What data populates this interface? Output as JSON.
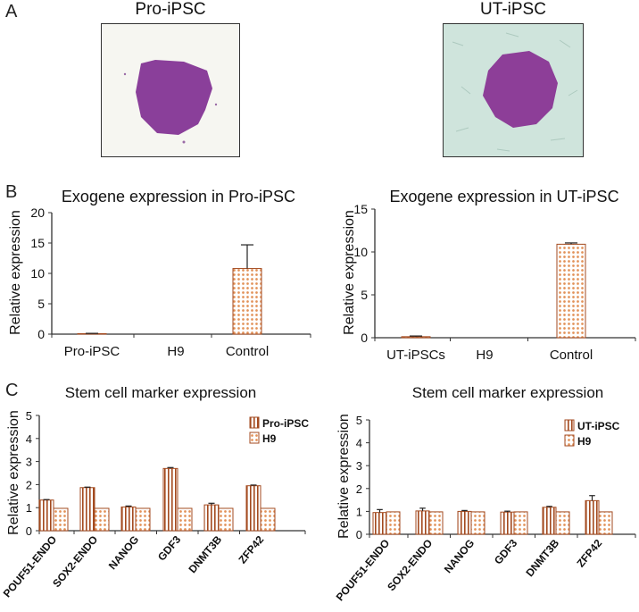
{
  "panels": {
    "a": "A",
    "b": "B",
    "c": "C"
  },
  "photos": [
    {
      "title": "Pro-iPSC",
      "background": "#f6f6f1",
      "colony": "#8a3f9a"
    },
    {
      "title": "UT-iPSC",
      "background": "#cfe4dc",
      "colony": "#8d3e98"
    }
  ],
  "colors": {
    "bar_stroke": "#a34a1f",
    "bar_fill": "#e29158",
    "axis": "#333333"
  },
  "chart_data": [
    {
      "type": "bar",
      "title": "Exogene expression in Pro-iPSC",
      "ylabel": "Relative expression",
      "xlabel": "",
      "categories": [
        "Pro-iPSC",
        "H9",
        "Control"
      ],
      "values": [
        0.08,
        0,
        10.8
      ],
      "errors": [
        0.05,
        0,
        3.9
      ],
      "ylim": [
        0,
        20
      ],
      "yticks": [
        "0",
        "5",
        "10",
        "15",
        "20"
      ],
      "bar_pattern": "dots",
      "grid": false
    },
    {
      "type": "bar",
      "title": "Exogene expression in UT-iPSC",
      "ylabel": "Relative expression",
      "xlabel": "",
      "categories": [
        "UT-iPSCs",
        "H9",
        "Control"
      ],
      "values": [
        0.12,
        0,
        10.9
      ],
      "errors": [
        0.08,
        0,
        0.15
      ],
      "ylim": [
        0,
        15
      ],
      "yticks": [
        "0",
        "5",
        "10",
        "15"
      ],
      "bar_pattern": "dots",
      "grid": false
    },
    {
      "type": "bar",
      "title": "Stem cell marker expression",
      "ylabel": "Relative expression",
      "xlabel": "",
      "categories": [
        "POUF51-ENDO",
        "SOX2-ENDO",
        "NANOG",
        "GDF3",
        "DNMT3B",
        "ZFP42"
      ],
      "series": [
        {
          "name": "Pro-iPSC",
          "pattern": "stripes",
          "values": [
            1.33,
            1.87,
            1.03,
            2.7,
            1.12,
            1.95
          ],
          "errors": [
            0.02,
            0.02,
            0.04,
            0.04,
            0.07,
            0.03
          ]
        },
        {
          "name": "H9",
          "pattern": "dots",
          "values": [
            0.97,
            0.97,
            0.97,
            0.97,
            0.97,
            0.97
          ],
          "errors": [
            0,
            0,
            0,
            0,
            0,
            0
          ]
        }
      ],
      "ylim": [
        0,
        5
      ],
      "yticks": [
        "0",
        "1",
        "2",
        "3",
        "4",
        "5"
      ],
      "legend": "top-right",
      "grid": false
    },
    {
      "type": "bar",
      "title": "Stem cell marker expression",
      "ylabel": "Relative expression",
      "xlabel": "",
      "categories": [
        "POUF51-ENDO",
        "SOX2-ENDO",
        "NANOG",
        "GDF3",
        "DNMT3B",
        "ZFP42"
      ],
      "series": [
        {
          "name": "UT-iPSC",
          "pattern": "stripes",
          "values": [
            0.95,
            1.02,
            1.0,
            0.97,
            1.18,
            1.47
          ],
          "errors": [
            0.13,
            0.12,
            0.04,
            0.04,
            0.04,
            0.22
          ]
        },
        {
          "name": "H9",
          "pattern": "dots",
          "values": [
            0.98,
            0.98,
            0.98,
            0.98,
            0.98,
            0.98
          ],
          "errors": [
            0,
            0,
            0,
            0,
            0,
            0
          ]
        }
      ],
      "ylim": [
        0,
        5
      ],
      "yticks": [
        "0",
        "1",
        "2",
        "3",
        "4",
        "5"
      ],
      "legend": "top-right",
      "grid": false
    }
  ]
}
